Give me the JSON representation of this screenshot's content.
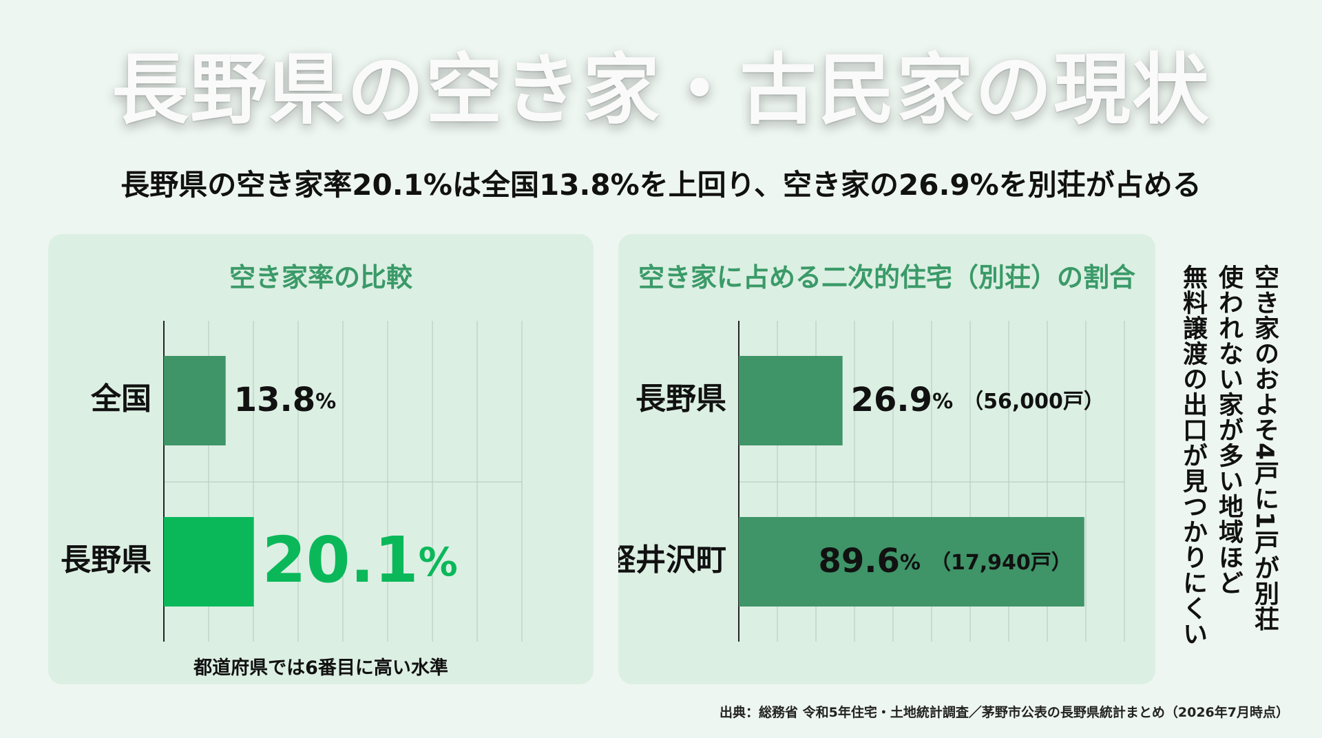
{
  "title": "長野県の空き家・古民家の現状",
  "subtitle": "長野県の空き家率20.1%は全国13.8%を上回り、空き家の26.9%を別荘が占める",
  "left_panel": {
    "title": "空き家率の比較",
    "note": "都道府県では6番目に高い水準"
  },
  "right_panel": {
    "title": "空き家に占める二次的住宅（別荘）の割合"
  },
  "side_note": [
    "空き家のおよそ4戸に1戸が別荘",
    "使われない家が多い地域ほど",
    "無料譲渡の出口が見つかりにくい"
  ],
  "source": "出典：総務省 令和5年住宅・土地統計調査／茅野市公表の長野県統計まとめ（2026年7月時点）",
  "colors": {
    "bar": "#3f9468",
    "highlight": "#0ab85a",
    "panel": "#dcefe3",
    "accent_text": "#3a9a68"
  },
  "chart_data": [
    {
      "type": "bar",
      "orientation": "horizontal",
      "title": "空き家率の比較",
      "categories": [
        "全国",
        "長野県"
      ],
      "values": [
        13.8,
        20.1
      ],
      "value_labels": [
        "13.8",
        "20.1"
      ],
      "unit": "%",
      "highlight_index": 1,
      "xlim": [
        0,
        80
      ],
      "grid": true
    },
    {
      "type": "bar",
      "orientation": "horizontal",
      "title": "空き家に占める二次的住宅（別荘）の割合",
      "categories": [
        "長野県",
        "軽井沢町"
      ],
      "values": [
        26.9,
        89.6
      ],
      "value_labels": [
        "26.9",
        "89.6"
      ],
      "unit": "%",
      "counts": [
        "（56,000戸）",
        "（17,940戸）"
      ],
      "xlim": [
        0,
        100
      ],
      "grid": true
    }
  ]
}
